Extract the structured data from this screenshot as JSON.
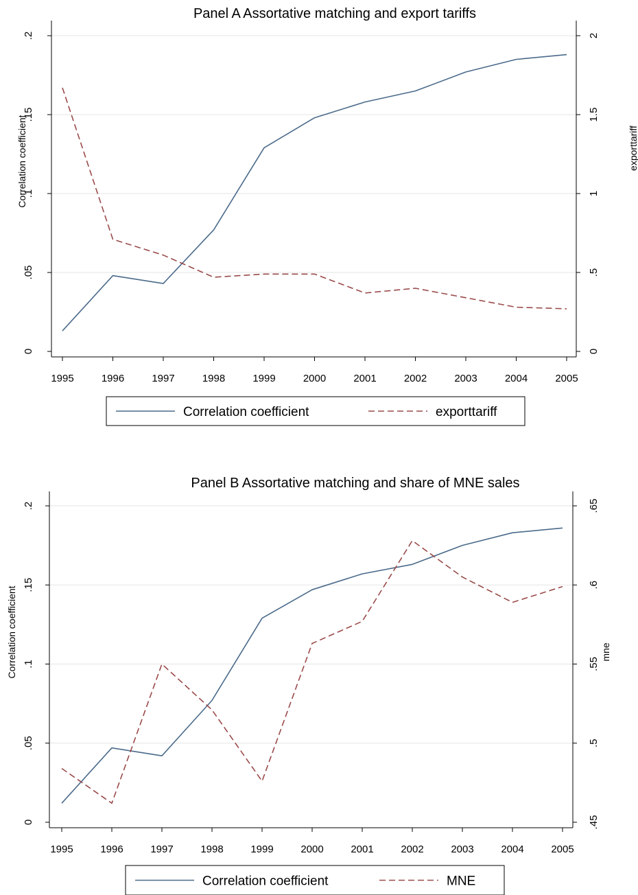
{
  "chart_data": [
    {
      "type": "line",
      "title": "Panel A  Assortative matching and export tariffs",
      "x": [
        1995,
        1996,
        1997,
        1998,
        1999,
        2000,
        2001,
        2002,
        2003,
        2004,
        2005
      ],
      "x_ticks": [
        "1995",
        "1996",
        "1997",
        "1998",
        "1999",
        "2000",
        "2001",
        "2002",
        "2003",
        "2004",
        "2005"
      ],
      "xlabel": "",
      "ylabel": "Correlation coefficient",
      "y2label": "exporttariff",
      "ylim": [
        0,
        0.2
      ],
      "y2lim": [
        0,
        2
      ],
      "y_ticks": [
        0,
        0.05,
        0.1,
        0.15,
        0.2
      ],
      "y_tick_labels": [
        "0",
        ".05",
        ".1",
        ".15",
        ".2"
      ],
      "y2_ticks": [
        0,
        0.5,
        1,
        1.5,
        2
      ],
      "y2_tick_labels": [
        "0",
        ".5",
        "1",
        "1.5",
        "2"
      ],
      "grid": true,
      "legend_position": "bottom",
      "series": [
        {
          "name": "Correlation coefficient",
          "axis": "left",
          "style": "solid",
          "color": "#4a6a8a",
          "values": [
            0.013,
            0.048,
            0.043,
            0.077,
            0.129,
            0.148,
            0.158,
            0.165,
            0.177,
            0.185,
            0.188
          ]
        },
        {
          "name": "exporttariff",
          "axis": "right",
          "style": "dashed",
          "color": "#9a4a4a",
          "values": [
            1.67,
            0.71,
            0.61,
            0.47,
            0.49,
            0.49,
            0.37,
            0.4,
            0.34,
            0.28,
            0.27
          ]
        }
      ]
    },
    {
      "type": "line",
      "title": "Panel B  Assortative matching and share of MNE sales",
      "x": [
        1995,
        1996,
        1997,
        1998,
        1999,
        2000,
        2001,
        2002,
        2003,
        2004,
        2005
      ],
      "x_ticks": [
        "1995",
        "1996",
        "1997",
        "1998",
        "1999",
        "2000",
        "2001",
        "2002",
        "2003",
        "2004",
        "2005"
      ],
      "xlabel": "",
      "ylabel": "Correlation coefficient",
      "y2label": "mne",
      "ylim": [
        0,
        0.2
      ],
      "y2lim": [
        0.45,
        0.65
      ],
      "y_ticks": [
        0,
        0.05,
        0.1,
        0.15,
        0.2
      ],
      "y_tick_labels": [
        "0",
        ".05",
        ".1",
        ".15",
        ".2"
      ],
      "y2_ticks": [
        0.45,
        0.5,
        0.55,
        0.6,
        0.65
      ],
      "y2_tick_labels": [
        ".45",
        ".5",
        ".55",
        ".6",
        ".65"
      ],
      "grid": true,
      "legend_position": "bottom",
      "series": [
        {
          "name": "Correlation coefficient",
          "axis": "left",
          "style": "solid",
          "color": "#4a6a8a",
          "values": [
            0.012,
            0.047,
            0.042,
            0.077,
            0.129,
            0.147,
            0.157,
            0.163,
            0.175,
            0.183,
            0.186
          ]
        },
        {
          "name": "MNE",
          "axis": "right",
          "style": "dashed",
          "color": "#9a4a4a",
          "values": [
            0.484,
            0.462,
            0.55,
            0.521,
            0.476,
            0.563,
            0.577,
            0.628,
            0.605,
            0.589,
            0.599
          ]
        }
      ]
    }
  ]
}
